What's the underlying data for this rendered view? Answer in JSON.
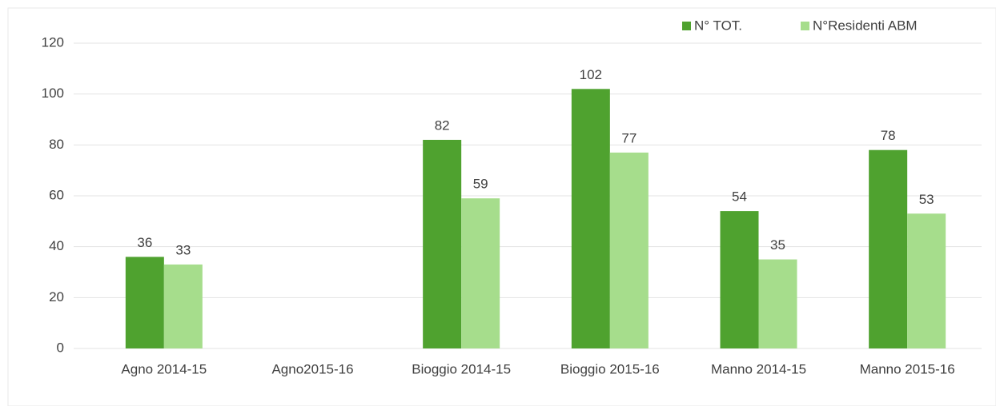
{
  "chart_data": {
    "type": "bar",
    "categories": [
      "Agno 2014-15",
      "Agno2015-16",
      "Bioggio 2014-15",
      "Bioggio 2015-16",
      "Manno 2014-15",
      "Manno 2015-16"
    ],
    "series": [
      {
        "name": "N° TOT.",
        "color": "#4fa22f",
        "values": [
          36,
          null,
          82,
          102,
          54,
          78
        ]
      },
      {
        "name": "N°Residenti ABM",
        "color": "#a6dd8c",
        "values": [
          33,
          null,
          59,
          77,
          35,
          53
        ]
      }
    ],
    "ylim": [
      0,
      120
    ],
    "yticks": [
      0,
      20,
      40,
      60,
      80,
      100,
      120
    ],
    "grid": true,
    "legend": "top-right"
  }
}
